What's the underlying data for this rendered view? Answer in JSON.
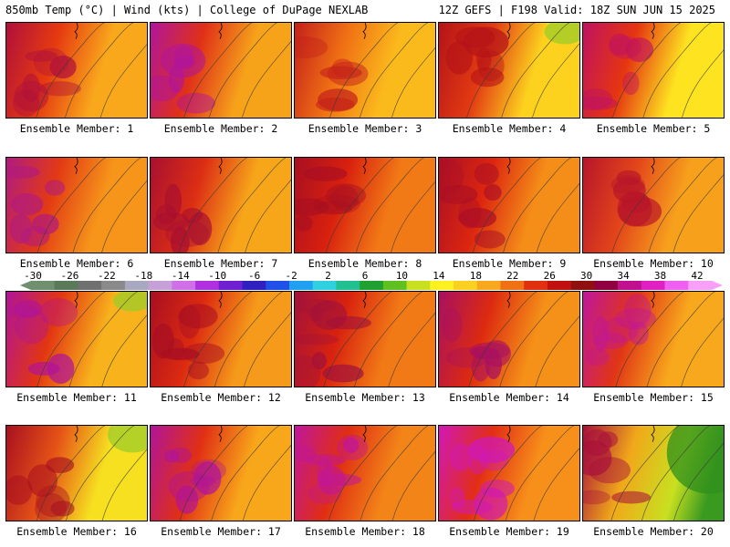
{
  "header": {
    "left": "850mb Temp (°C) | Wind (kts) | College of DuPage NEXLAB",
    "right": "12Z GEFS | F198 Valid: 18Z SUN JUN 15 2025"
  },
  "members": [
    {
      "label": "Ensemble Member: 1",
      "core": "#b0103a",
      "hot": 0.35,
      "mid": "#e63a10",
      "edge": "#f9a81c",
      "cool": 0.0
    },
    {
      "label": "Ensemble Member: 2",
      "core": "#b0159c",
      "hot": 0.25,
      "mid": "#e03018",
      "edge": "#f6a31a",
      "cool": 0.0
    },
    {
      "label": "Ensemble Member: 3",
      "core": "#c4201a",
      "hot": 0.2,
      "mid": "#f07014",
      "edge": "#fbba1c",
      "cool": 0.0
    },
    {
      "label": "Ensemble Member: 4",
      "core": "#b41318",
      "hot": 0.3,
      "mid": "#e23a12",
      "edge": "#fcd21e",
      "cool": 0.1
    },
    {
      "label": "Ensemble Member: 5",
      "core": "#c01260",
      "hot": 0.25,
      "mid": "#e53510",
      "edge": "#fde320",
      "cool": 0.0
    },
    {
      "label": "Ensemble Member: 6",
      "core": "#b01a80",
      "hot": 0.3,
      "mid": "#e23a14",
      "edge": "#f6951a",
      "cool": 0.0
    },
    {
      "label": "Ensemble Member: 7",
      "core": "#a81030",
      "hot": 0.35,
      "mid": "#dc2e14",
      "edge": "#f7a61a",
      "cool": 0.0
    },
    {
      "label": "Ensemble Member: 8",
      "core": "#a80f22",
      "hot": 0.35,
      "mid": "#d8200e",
      "edge": "#f27a16",
      "cool": 0.0
    },
    {
      "label": "Ensemble Member: 9",
      "core": "#aa0f25",
      "hot": 0.35,
      "mid": "#dc260f",
      "edge": "#f58e18",
      "cool": 0.0
    },
    {
      "label": "Ensemble Member: 10",
      "core": "#b8152a",
      "hot": 0.3,
      "mid": "#e2451a",
      "edge": "#f7a01c",
      "cool": 0.0
    },
    {
      "label": "Ensemble Member: 11",
      "core": "#b01498",
      "hot": 0.3,
      "mid": "#e23512",
      "edge": "#f8b21c",
      "cool": 0.05
    },
    {
      "label": "Ensemble Member: 12",
      "core": "#a80f22",
      "hot": 0.4,
      "mid": "#dc2a10",
      "edge": "#f59a1a",
      "cool": 0.0
    },
    {
      "label": "Ensemble Member: 13",
      "core": "#a2123a",
      "hot": 0.45,
      "mid": "#d8220f",
      "edge": "#f27a16",
      "cool": 0.0
    },
    {
      "label": "Ensemble Member: 14",
      "core": "#a81060",
      "hot": 0.4,
      "mid": "#dc2a10",
      "edge": "#f59018",
      "cool": 0.0
    },
    {
      "label": "Ensemble Member: 15",
      "core": "#c0169c",
      "hot": 0.35,
      "mid": "#e03515",
      "edge": "#f8a81c",
      "cool": 0.0
    },
    {
      "label": "Ensemble Member: 16",
      "core": "#a81020",
      "hot": 0.25,
      "mid": "#e55216",
      "edge": "#f6e020",
      "cool": 0.25
    },
    {
      "label": "Ensemble Member: 17",
      "core": "#b0149a",
      "hot": 0.4,
      "mid": "#e03014",
      "edge": "#f8a61a",
      "cool": 0.0
    },
    {
      "label": "Ensemble Member: 18",
      "core": "#c0169c",
      "hot": 0.5,
      "mid": "#e02e12",
      "edge": "#f28418",
      "cool": 0.0
    },
    {
      "label": "Ensemble Member: 19",
      "core": "#d018b8",
      "hot": 0.5,
      "mid": "#e22e14",
      "edge": "#f7901a",
      "cool": 0.0
    },
    {
      "label": "Ensemble Member: 20",
      "core": "#a8103a",
      "hot": 0.3,
      "mid": "#f0a81a",
      "edge": "#c8e020",
      "cool": 0.9
    }
  ],
  "colorbar": {
    "ticks": [
      "-30",
      "-26",
      "-22",
      "-18",
      "-14",
      "-10",
      "-6",
      "-2",
      "2",
      "6",
      "10",
      "14",
      "18",
      "22",
      "26",
      "30",
      "34",
      "38",
      "42"
    ],
    "colors": [
      "#6f8f6f",
      "#5a7a5a",
      "#707070",
      "#8a8a8a",
      "#a8a8c0",
      "#c8a0d8",
      "#d070e8",
      "#b030e0",
      "#7020d0",
      "#3020c0",
      "#2050e8",
      "#20a0f0",
      "#30d0e0",
      "#20c090",
      "#20a030",
      "#60c020",
      "#c8e020",
      "#fff020",
      "#fcd020",
      "#f8a81c",
      "#f07014",
      "#e03010",
      "#c01010",
      "#901010",
      "#900040",
      "#c01090",
      "#e020c0",
      "#f060f0",
      "#f8a0f8"
    ]
  }
}
